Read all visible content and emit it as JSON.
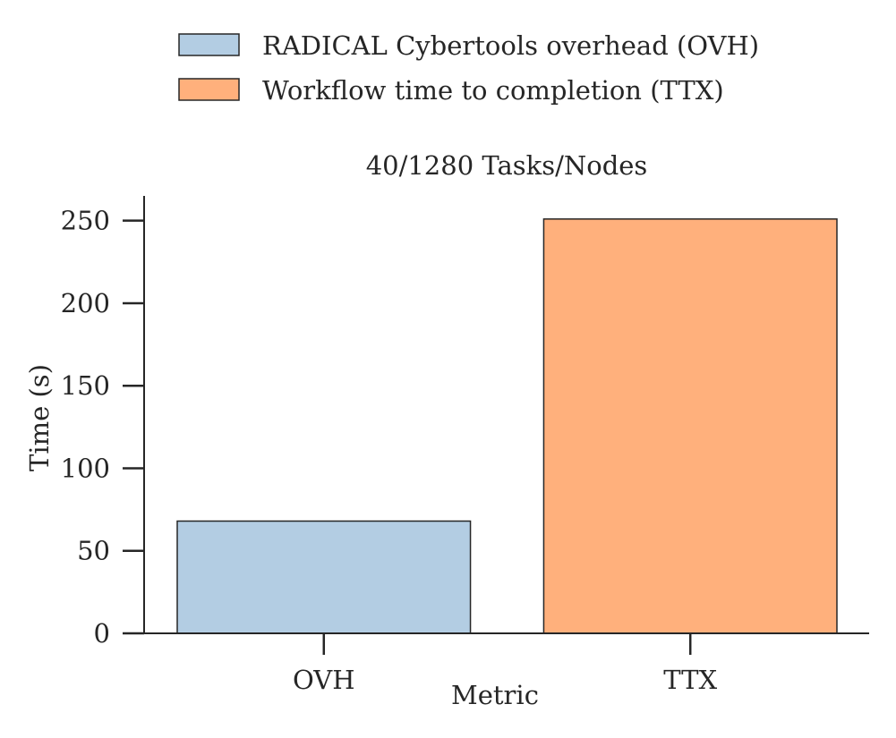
{
  "chart_data": {
    "type": "bar",
    "title": "40/1280 Tasks/Nodes",
    "xlabel": "Metric",
    "ylabel": "Time (s)",
    "categories": [
      "OVH",
      "TTX"
    ],
    "values": [
      68,
      251
    ],
    "ylim": [
      0,
      265
    ],
    "yticks": [
      0,
      50,
      100,
      150,
      200,
      250
    ],
    "colors": [
      "#b3cde3",
      "#ffb07c"
    ],
    "edge_color": "#262626",
    "grid": false,
    "legend_position": "top-center",
    "legend": [
      {
        "label": "RADICAL Cybertools overhead (OVH)",
        "color": "#b3cde3"
      },
      {
        "label": "Workflow time to completion (TTX)",
        "color": "#ffb07c"
      }
    ]
  }
}
